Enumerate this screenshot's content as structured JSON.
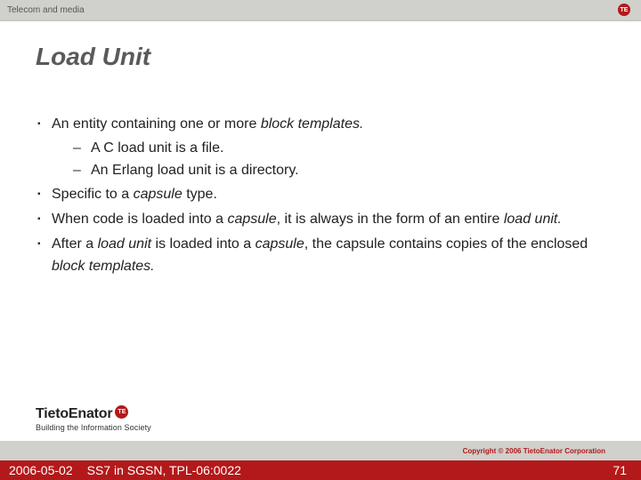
{
  "header": {
    "category": "Telecom and media",
    "logo_text": "TE"
  },
  "title": "Load Unit",
  "bullets": {
    "b1_pre": "An entity containing one or more ",
    "b1_ital": "block templates.",
    "b1_sub1": "A C load unit is a file.",
    "b1_sub2": "An Erlang load unit is a directory.",
    "b2_pre": "Specific to a ",
    "b2_ital": "capsule",
    "b2_post": " type.",
    "b3_pre": "When code is loaded into a ",
    "b3_ital1": "capsule",
    "b3_mid": ", it is always in the form of an entire ",
    "b3_ital2": "load unit.",
    "b4_pre": "After a ",
    "b4_ital1": "load unit",
    "b4_mid1": " is loaded into a ",
    "b4_ital2": "capsule",
    "b4_mid2": ", the capsule contains copies of the enclosed ",
    "b4_ital3": "block templates."
  },
  "brand": {
    "name": "TietoEnator",
    "dot": "TE",
    "tagline": "Building the Information Society"
  },
  "footer": {
    "copyright": "Copyright © 2006 TietoEnator Corporation",
    "date": "2006-05-02",
    "doc": "SS7 in SGSN, TPL-06:0022",
    "page": "71"
  },
  "colors": {
    "accent": "#b3191a",
    "grey_bar": "#d0d0cc",
    "title_grey": "#5a5a58"
  }
}
